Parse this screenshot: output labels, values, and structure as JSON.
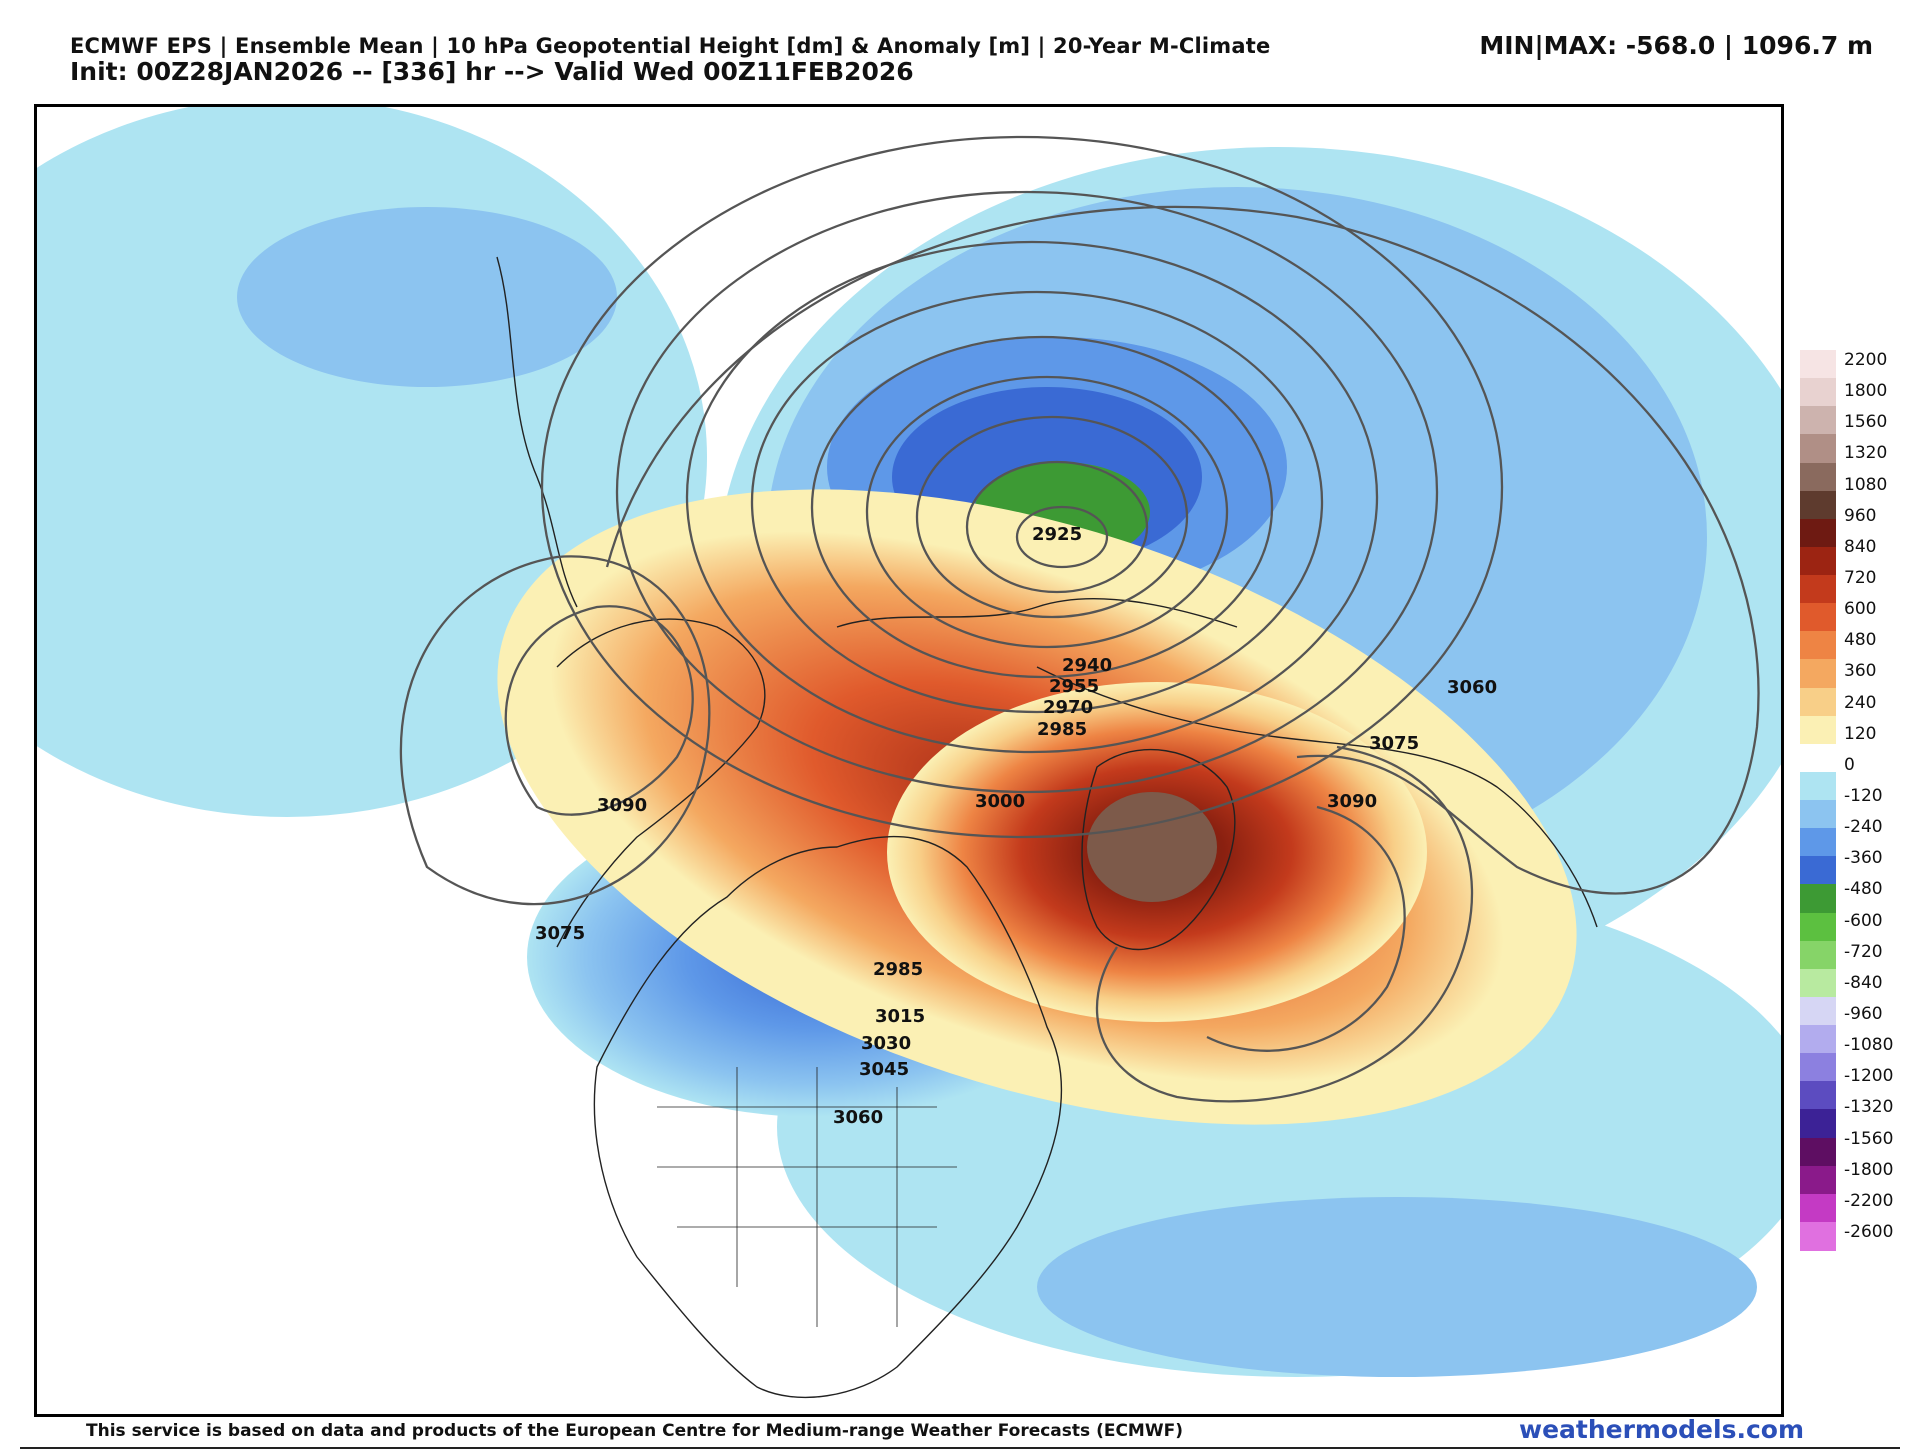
{
  "header": {
    "title_line1": "ECMWF EPS | Ensemble Mean | 10 hPa Geopotential Height [dm] & Anomaly [m] | 20-Year M-Climate",
    "title_line2": "Init: 00Z28JAN2026 -- [336] hr --> Valid Wed 00Z11FEB2026",
    "minmax": "MIN|MAX: -568.0 | 1096.7 m"
  },
  "colorbar": {
    "labels": [
      "2200",
      "1800",
      "1560",
      "1320",
      "1080",
      "960",
      "840",
      "720",
      "600",
      "480",
      "360",
      "240",
      "120",
      "0",
      "-120",
      "-240",
      "-360",
      "-480",
      "-600",
      "-720",
      "-840",
      "-960",
      "-1080",
      "-1200",
      "-1320",
      "-1560",
      "-1800",
      "-2200",
      "-2600"
    ],
    "colors": [
      "#f6e4e4",
      "#e8d2d0",
      "#cdb3ae",
      "#b08f86",
      "#8a6a5e",
      "#5e3b2e",
      "#6e1a12",
      "#9c2412",
      "#c33a1c",
      "#e05a2c",
      "#ee8444",
      "#f4a860",
      "#f8cf88",
      "#fbf0b4",
      "#ffffff",
      "#aee4f2",
      "#8cc4f0",
      "#5e98e8",
      "#3a6ad4",
      "#3d9a34",
      "#5cc040",
      "#86d468",
      "#b8eaa0",
      "#d6d6f4",
      "#b2acee",
      "#8c80e0",
      "#5c4cc0",
      "#3c2296",
      "#5e0e62",
      "#8a1a8a",
      "#c43ac4",
      "#e070e0"
    ]
  },
  "contour_labels": [
    {
      "text": "2925"
    },
    {
      "text": "2940"
    },
    {
      "text": "2955"
    },
    {
      "text": "2970"
    },
    {
      "text": "2985"
    },
    {
      "text": "3000"
    },
    {
      "text": "3060"
    },
    {
      "text": "3075"
    },
    {
      "text": "3090"
    },
    {
      "text": "3090"
    },
    {
      "text": "3075"
    },
    {
      "text": "2985"
    },
    {
      "text": "3015"
    },
    {
      "text": "3030"
    },
    {
      "text": "3045"
    },
    {
      "text": "3060"
    }
  ],
  "footer": {
    "note": "This service is based on data and products of the European Centre for Medium-range Weather Forecasts (ECMWF)",
    "brand": "weathermodels.com"
  }
}
